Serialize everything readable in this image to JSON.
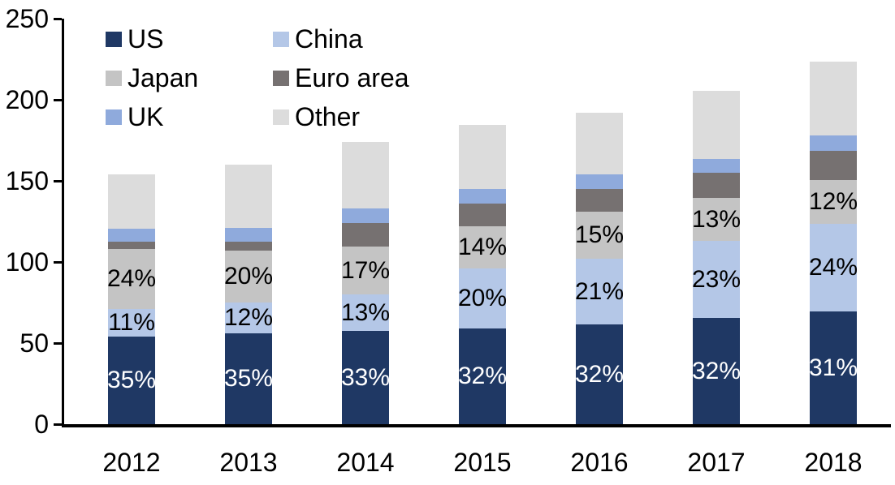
{
  "chart_data": {
    "type": "bar",
    "stacked": true,
    "title": "",
    "xlabel": "",
    "ylabel": "",
    "ylim": [
      0,
      250
    ],
    "yticks": [
      "0",
      "50",
      "100",
      "150",
      "200",
      "250"
    ],
    "grid": false,
    "legend_position": "top-left-two-columns",
    "categories": [
      "2012",
      "2013",
      "2014",
      "2015",
      "2016",
      "2017",
      "2018"
    ],
    "series": [
      {
        "name": "US",
        "color": "#1f3864",
        "values": [
          54,
          56,
          57.5,
          59,
          61.5,
          65.5,
          69.5
        ],
        "labels": [
          "35%",
          "35%",
          "33%",
          "32%",
          "32%",
          "32%",
          "31%"
        ],
        "label_color": "#ffffff"
      },
      {
        "name": "China",
        "color": "#b4c7e7",
        "values": [
          17,
          19,
          22.5,
          37,
          40.5,
          47.5,
          54
        ],
        "labels": [
          "11%",
          "12%",
          "13%",
          "20%",
          "21%",
          "23%",
          "24%"
        ],
        "label_color": "#000000"
      },
      {
        "name": "Japan",
        "color": "#c4c4c4",
        "values": [
          37,
          32,
          29.5,
          26,
          29,
          26.5,
          27
        ],
        "labels": [
          "24%",
          "20%",
          "17%",
          "14%",
          "15%",
          "13%",
          "12%"
        ],
        "label_color": "#000000"
      },
      {
        "name": "Euro area",
        "color": "#767171",
        "values": [
          4.5,
          5.5,
          14.5,
          14,
          14,
          15.5,
          18
        ],
        "labels": null,
        "label_color": null
      },
      {
        "name": "UK",
        "color": "#8faadc",
        "values": [
          8,
          8.5,
          9,
          9,
          9,
          8.5,
          9.5
        ],
        "labels": null,
        "label_color": null
      },
      {
        "name": "Other",
        "color": "#dcdcdc",
        "values": [
          33.5,
          39,
          41,
          39.5,
          38,
          42,
          45.5
        ],
        "labels": null,
        "label_color": null
      }
    ],
    "totals": [
      154,
      160,
      174,
      184.5,
      192,
      205.5,
      223.5
    ],
    "colors": {
      "axis": "#000000",
      "background": "#ffffff"
    }
  },
  "layout_note_visible_text_only": true
}
